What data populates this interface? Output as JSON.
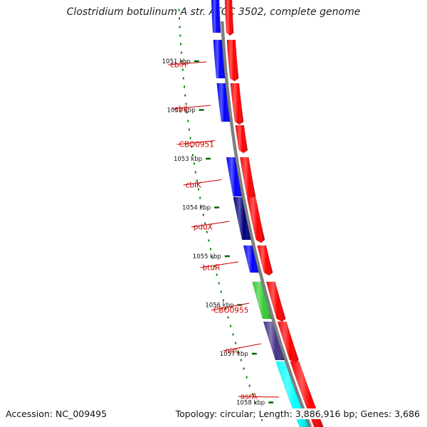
{
  "title": "Clostridium botulinum A str. ATCC 3502, complete genome",
  "footer": {
    "accession": "Accession: NC_009495",
    "stats": "Topology: circular; Length: 3,886,916 bp; Genes: 3,686"
  },
  "ticks": [
    {
      "label": "1051 kbp",
      "position_kbp": 1051
    },
    {
      "label": "1052 kbp",
      "position_kbp": 1052
    },
    {
      "label": "1053 kbp",
      "position_kbp": 1053
    },
    {
      "label": "1054 kbp",
      "position_kbp": 1054
    },
    {
      "label": "1055 kbp",
      "position_kbp": 1055
    },
    {
      "label": "1056 kbp",
      "position_kbp": 1056
    },
    {
      "label": "1057 kbp",
      "position_kbp": 1057
    },
    {
      "label": "1058 kbp",
      "position_kbp": 1058
    }
  ],
  "genes": [
    {
      "name": "cbiH",
      "color": "#ff0000",
      "cog_color": "#0000ff"
    },
    {
      "name": "cbiJ",
      "color": "#ff0000",
      "cog_color": "#0000ff"
    },
    {
      "name": "CBO0951",
      "color": "#ff0000",
      "cog_color": null
    },
    {
      "name": "cbiK",
      "color": "#ff0000",
      "cog_color": "#0000ff"
    },
    {
      "name": "pduX",
      "color": "#ff0000",
      "cog_color": "#000080"
    },
    {
      "name": "btuR",
      "color": "#ff0000",
      "cog_color": "#0000ff"
    },
    {
      "name": "CBO0955",
      "color": "#ff0000",
      "cog_color": "#33cc33"
    },
    {
      "name": "nirC",
      "color": "#ff0000",
      "cog_color": "#443388"
    },
    {
      "name": "asrA",
      "color": "#ff0000",
      "cog_color": "#00ffff"
    }
  ],
  "colors": {
    "backbone": "#808080",
    "gene_label": "#cc0000",
    "tick": "#006600",
    "gc_dots": "#008800"
  }
}
